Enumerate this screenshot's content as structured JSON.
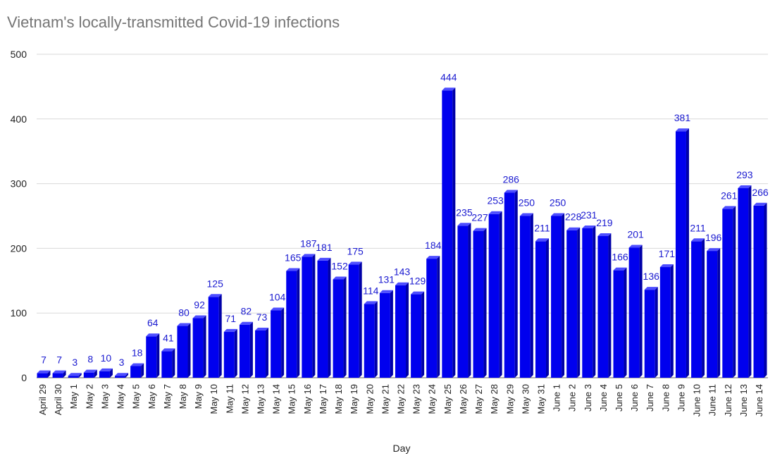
{
  "chart_data": {
    "type": "bar",
    "title": "Vietnam's locally-transmitted Covid-19 infections",
    "xlabel": "Day",
    "ylabel": "",
    "ylim": [
      0,
      500
    ],
    "yticks": [
      0,
      100,
      200,
      300,
      400,
      500
    ],
    "grid": true,
    "bar_color": "#0000ee",
    "label_color": "#1a1ad0",
    "categories": [
      "April 29",
      "April 30",
      "May 1",
      "May 2",
      "May 3",
      "May 4",
      "May 5",
      "May 6",
      "May 7",
      "May 8",
      "May 9",
      "May 10",
      "May 11",
      "May 12",
      "May 13",
      "May 14",
      "May 15",
      "May 16",
      "May 17",
      "May 18",
      "May 19",
      "May 20",
      "May 21",
      "May 22",
      "May 23",
      "May 24",
      "May 25",
      "May 26",
      "May 27",
      "May 28",
      "May 29",
      "May 30",
      "May 31",
      "June 1",
      "June 2",
      "June 3",
      "June 4",
      "June 5",
      "June 6",
      "June 7",
      "June 8",
      "June 9",
      "June 10",
      "June 11",
      "June 12",
      "June 13",
      "June 14"
    ],
    "values": [
      7,
      7,
      3,
      8,
      10,
      3,
      18,
      64,
      41,
      80,
      92,
      125,
      71,
      82,
      73,
      104,
      165,
      187,
      181,
      152,
      175,
      114,
      131,
      143,
      129,
      184,
      444,
      235,
      227,
      253,
      286,
      250,
      211,
      250,
      228,
      231,
      219,
      166,
      201,
      136,
      171,
      381,
      211,
      196,
      261,
      293,
      266
    ]
  }
}
